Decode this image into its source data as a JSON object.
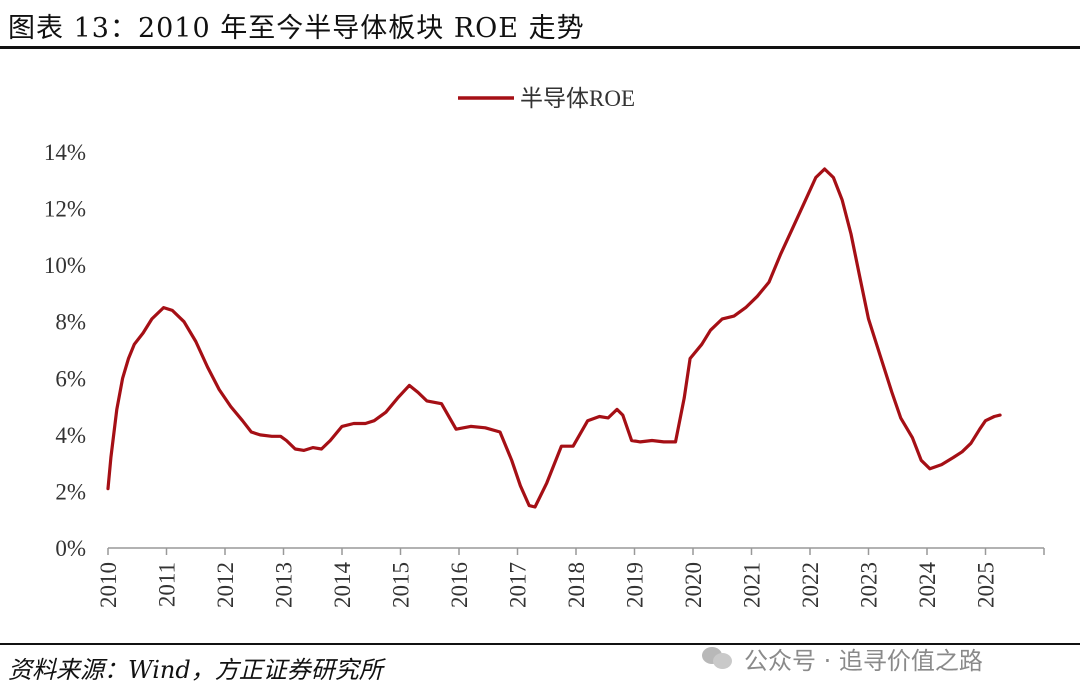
{
  "header": {
    "title": "图表 13：2010 年至今半导体板块 ROE 走势"
  },
  "footer": {
    "source": "资料来源：Wind，方正证券研究所",
    "watermark": "公众号 · 追寻价值之路",
    "watermark_icon": "wechat-icon"
  },
  "chart_data": {
    "type": "line",
    "series": [
      {
        "name": "半导体ROE",
        "color": "#a50f15",
        "points": [
          [
            2010.0,
            2.1
          ],
          [
            2010.05,
            3.2
          ],
          [
            2010.15,
            4.9
          ],
          [
            2010.25,
            6.0
          ],
          [
            2010.35,
            6.7
          ],
          [
            2010.45,
            7.2
          ],
          [
            2010.6,
            7.6
          ],
          [
            2010.75,
            8.1
          ],
          [
            2010.95,
            8.5
          ],
          [
            2011.1,
            8.4
          ],
          [
            2011.3,
            8.0
          ],
          [
            2011.5,
            7.3
          ],
          [
            2011.7,
            6.4
          ],
          [
            2011.9,
            5.6
          ],
          [
            2012.1,
            5.0
          ],
          [
            2012.3,
            4.5
          ],
          [
            2012.45,
            4.1
          ],
          [
            2012.6,
            4.0
          ],
          [
            2012.8,
            3.95
          ],
          [
            2012.95,
            3.95
          ],
          [
            2013.05,
            3.8
          ],
          [
            2013.2,
            3.5
          ],
          [
            2013.35,
            3.45
          ],
          [
            2013.5,
            3.55
          ],
          [
            2013.65,
            3.5
          ],
          [
            2013.8,
            3.8
          ],
          [
            2014.0,
            4.3
          ],
          [
            2014.2,
            4.4
          ],
          [
            2014.4,
            4.4
          ],
          [
            2014.55,
            4.5
          ],
          [
            2014.75,
            4.8
          ],
          [
            2014.95,
            5.3
          ],
          [
            2015.15,
            5.75
          ],
          [
            2015.3,
            5.5
          ],
          [
            2015.45,
            5.2
          ],
          [
            2015.7,
            5.1
          ],
          [
            2015.95,
            4.2
          ],
          [
            2016.2,
            4.3
          ],
          [
            2016.45,
            4.25
          ],
          [
            2016.7,
            4.1
          ],
          [
            2016.9,
            3.1
          ],
          [
            2017.05,
            2.2
          ],
          [
            2017.2,
            1.5
          ],
          [
            2017.3,
            1.45
          ],
          [
            2017.5,
            2.3
          ],
          [
            2017.75,
            3.6
          ],
          [
            2017.95,
            3.6
          ],
          [
            2018.2,
            4.5
          ],
          [
            2018.4,
            4.65
          ],
          [
            2018.55,
            4.6
          ],
          [
            2018.7,
            4.9
          ],
          [
            2018.8,
            4.7
          ],
          [
            2018.95,
            3.8
          ],
          [
            2019.1,
            3.75
          ],
          [
            2019.3,
            3.8
          ],
          [
            2019.5,
            3.75
          ],
          [
            2019.7,
            3.75
          ],
          [
            2019.85,
            5.3
          ],
          [
            2019.95,
            6.7
          ],
          [
            2020.15,
            7.2
          ],
          [
            2020.3,
            7.7
          ],
          [
            2020.5,
            8.1
          ],
          [
            2020.7,
            8.2
          ],
          [
            2020.9,
            8.5
          ],
          [
            2021.1,
            8.9
          ],
          [
            2021.3,
            9.4
          ],
          [
            2021.5,
            10.4
          ],
          [
            2021.7,
            11.3
          ],
          [
            2021.9,
            12.2
          ],
          [
            2022.1,
            13.1
          ],
          [
            2022.25,
            13.4
          ],
          [
            2022.4,
            13.1
          ],
          [
            2022.55,
            12.3
          ],
          [
            2022.7,
            11.1
          ],
          [
            2022.85,
            9.6
          ],
          [
            2023.0,
            8.1
          ],
          [
            2023.2,
            6.8
          ],
          [
            2023.4,
            5.5
          ],
          [
            2023.55,
            4.6
          ],
          [
            2023.75,
            3.9
          ],
          [
            2023.9,
            3.1
          ],
          [
            2024.05,
            2.8
          ],
          [
            2024.25,
            2.95
          ],
          [
            2024.45,
            3.2
          ],
          [
            2024.6,
            3.4
          ],
          [
            2024.75,
            3.7
          ],
          [
            2024.9,
            4.2
          ],
          [
            2025.0,
            4.5
          ],
          [
            2025.15,
            4.65
          ],
          [
            2025.25,
            4.7
          ]
        ]
      }
    ],
    "x_ticks": [
      "2010",
      "2011",
      "2012",
      "2013",
      "2014",
      "2015",
      "2016",
      "2017",
      "2018",
      "2019",
      "2020",
      "2021",
      "2022",
      "2023",
      "2024",
      "2025"
    ],
    "y_ticks": [
      "0%",
      "2%",
      "4%",
      "6%",
      "8%",
      "10%",
      "12%",
      "14%"
    ],
    "xlim": [
      2010,
      2026
    ],
    "ylim": [
      0,
      14
    ],
    "legend_position": "top-center",
    "grid": false
  }
}
